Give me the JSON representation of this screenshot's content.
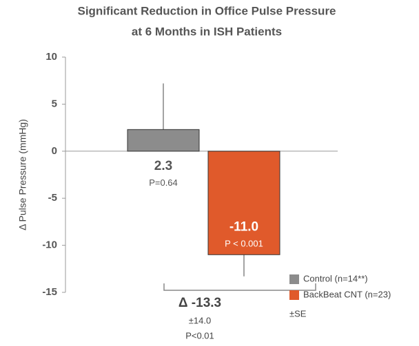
{
  "chart_data": {
    "type": "bar",
    "title": [
      "Significant Reduction in Office Pulse Pressure",
      "at 6 Months in ISH Patients"
    ],
    "y_label": "Δ Pulse Pressure (mmHg)",
    "ylim": [
      -15,
      10
    ],
    "yticks": [
      10,
      5,
      0,
      -5,
      -10,
      -15
    ],
    "series": [
      {
        "name": "Control (n=14**)",
        "color": "#8c8c8c",
        "values": [
          2.3
        ],
        "errors": [
          4.9
        ],
        "value_labels": [
          "2.3"
        ],
        "p_labels": [
          "P=0.64"
        ]
      },
      {
        "name": "BackBeat CNT (n=23)",
        "color": "#e05a2b",
        "values": [
          -11.0
        ],
        "errors": [
          2.3
        ],
        "value_labels": [
          "-11.0"
        ],
        "p_labels": [
          "P < 0.001"
        ]
      }
    ],
    "annotations": {
      "difference": "Δ -13.3",
      "difference_error": "±14.0",
      "difference_p": "P<0.01"
    },
    "error_note": "±SE"
  }
}
